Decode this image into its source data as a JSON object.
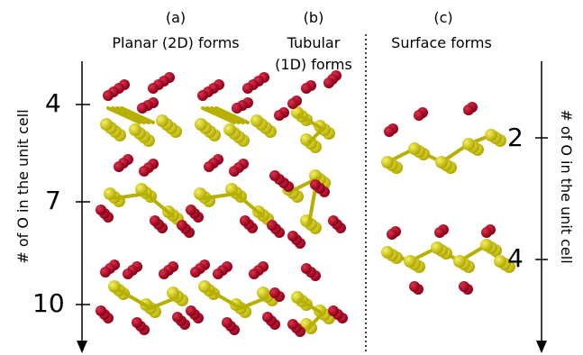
{
  "panels": {
    "a": {
      "letter": "(a)",
      "title": "Planar (2D) forms"
    },
    "b": {
      "letter": "(b)",
      "title_line1": "Tubular",
      "title_line2": "(1D) forms"
    },
    "c": {
      "letter": "(c)",
      "title": "Surface forms"
    }
  },
  "left_axis": {
    "label": "# of O in the unit cell",
    "ticks": [
      "4",
      "7",
      "10"
    ]
  },
  "right_axis": {
    "label": "# of O in the unit cell",
    "ticks": [
      "2",
      "4"
    ]
  },
  "colors": {
    "oxygen": "#a0001c",
    "oxygen_highlight": "#e0304a",
    "silicon": "#d8d000",
    "silicon_highlight": "#f6f060",
    "bond_si": "#b8b000",
    "bond_o": "#8a0018",
    "axis": "#000000"
  }
}
